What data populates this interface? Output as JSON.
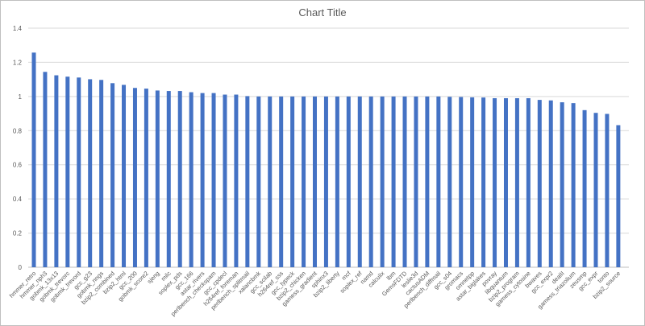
{
  "chart_data": {
    "type": "bar",
    "title": "Chart Title",
    "xlabel": "",
    "ylabel": "",
    "ylim": [
      0,
      1.4
    ],
    "yticks": [
      "0",
      "0.2",
      "0.4",
      "0.6",
      "0.8",
      "1",
      "1.2",
      "1.4"
    ],
    "grid": true,
    "legend": "none",
    "bar_color": "#4472c4",
    "categories": [
      "hmmer_retro",
      "hmmer_nph3",
      "gobmk_13x13",
      "gobmk_trevorc",
      "gobmk_trevord",
      "gcc_g23",
      "gobmk_nngs",
      "bzip2_combined",
      "bzip2_html",
      "gcc_200",
      "gobmk_score2",
      "sjeng",
      "milc",
      "soplex_pds",
      "gcc_166",
      "astar_rivers",
      "perlbench_checkspam",
      "gcc_cpdecl",
      "h264ref_foreman",
      "perlbench_splitmail",
      "xalancbmk",
      "gcc_scilab",
      "h264ref_sss",
      "gcc_typeck",
      "bzip2_chicken",
      "gamess_gradient",
      "sphinx3",
      "bzip2_liberty",
      "mcf",
      "soplex_ref",
      "namd",
      "calculix",
      "lbm",
      "GemsFDTD",
      "leslie3d",
      "cactusADM",
      "perlbench_diffmail",
      "gcc_s04",
      "gromacs",
      "omnetpp",
      "astar_biglakes",
      "povray",
      "libquantum",
      "bzip2_program",
      "gamess_cytosine",
      "bwaves",
      "gcc_expr2",
      "dealII",
      "gamess_triazolium",
      "zeusmp",
      "gcc_expr",
      "tonto",
      "bzip2_source"
    ],
    "values": [
      1.257,
      1.144,
      1.124,
      1.116,
      1.111,
      1.101,
      1.097,
      1.078,
      1.068,
      1.05,
      1.046,
      1.035,
      1.032,
      1.032,
      1.025,
      1.02,
      1.02,
      1.011,
      1.011,
      1.002,
      1.0,
      1.0,
      1.0,
      1.0,
      1.0,
      1.0,
      1.0,
      1.0,
      1.0,
      1.0,
      1.0,
      1.0,
      1.0,
      1.0,
      1.0,
      1.0,
      1.0,
      0.998,
      0.997,
      0.995,
      0.994,
      0.99,
      0.99,
      0.99,
      0.99,
      0.98,
      0.977,
      0.966,
      0.961,
      0.92,
      0.904,
      0.898,
      0.832
    ]
  }
}
